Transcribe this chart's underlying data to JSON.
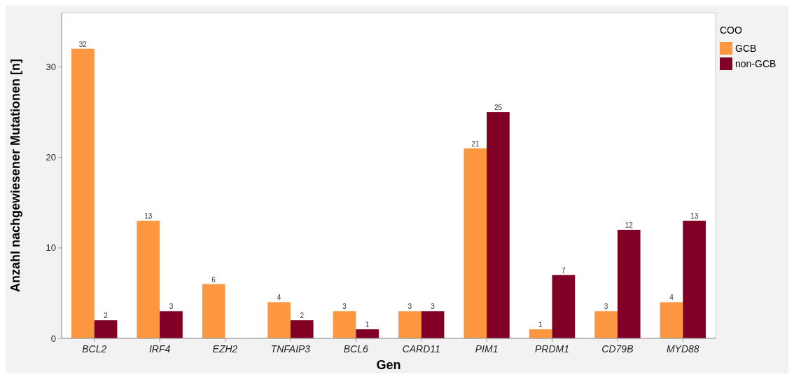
{
  "chart_data": {
    "type": "bar",
    "xlabel": "Gen",
    "ylabel": "Anzahl nachgewiesener Mutationen [n]",
    "legend_title": "COO",
    "legend": "right",
    "categories": [
      "BCL2",
      "IRF4",
      "EZH2",
      "TNFAIP3",
      "BCL6",
      "CARD11",
      "PIM1",
      "PRDM1",
      "CD79B",
      "MYD88"
    ],
    "series": [
      {
        "name": "GCB",
        "color": "#fd9640",
        "values": [
          32,
          13,
          6,
          4,
          3,
          3,
          21,
          1,
          3,
          4
        ]
      },
      {
        "name": "non-GCB",
        "color": "#800026",
        "values": [
          2,
          3,
          null,
          2,
          1,
          3,
          25,
          7,
          12,
          13
        ]
      }
    ],
    "ylim": [
      0,
      36
    ],
    "yticks": [
      0,
      10,
      20,
      30
    ],
    "data_labels": true,
    "grid": false
  }
}
